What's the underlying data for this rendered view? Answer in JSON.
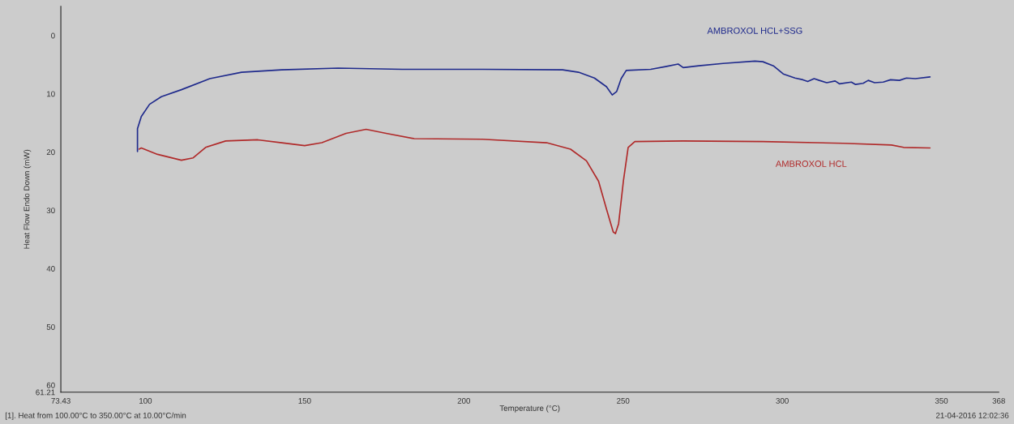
{
  "chart_data": {
    "type": "line",
    "xlabel": "Temperature (°C)",
    "ylabel": "Heat Flow Endo Down (mW)",
    "xlim": [
      73.43,
      368
    ],
    "xticks": [
      73.43,
      100,
      150,
      200,
      250,
      300,
      350,
      368
    ],
    "ylim": [
      61.21,
      -5
    ],
    "yticks": [
      0,
      10,
      20,
      30,
      40,
      50,
      60,
      61.21
    ],
    "marker": "none",
    "line_style": "solid",
    "series": [
      {
        "name": "AMBROXOL HCL+SSG",
        "color": "#1f2a8c",
        "x": [
          97.5,
          97.5,
          98.7,
          101.3,
          105,
          111.3,
          120.2,
          130.2,
          142.8,
          160.5,
          180.6,
          205.8,
          231,
          236,
          241,
          244.8,
          246.6,
          248,
          249.4,
          251,
          258.7,
          263.7,
          267.3,
          268.9,
          273.8,
          281.4,
          291.4,
          293.9,
          297.2,
          300.3,
          304,
          306.5,
          308,
          310,
          311.6,
          314,
          316.6,
          318,
          321.7,
          323,
          325.4,
          327,
          329,
          331.7,
          334,
          336.8,
          339,
          341.8,
          346.4
        ],
        "values": [
          19.9,
          16.0,
          13.9,
          11.8,
          10.5,
          9.3,
          7.4,
          6.3,
          5.9,
          5.6,
          5.8,
          5.8,
          5.9,
          6.3,
          7.3,
          8.8,
          10.2,
          9.6,
          7.4,
          6.0,
          5.8,
          5.3,
          4.9,
          5.5,
          5.2,
          4.8,
          4.4,
          4.5,
          5.2,
          6.6,
          7.3,
          7.6,
          7.9,
          7.4,
          7.7,
          8.1,
          7.8,
          8.3,
          8.0,
          8.4,
          8.2,
          7.7,
          8.1,
          8.0,
          7.6,
          7.7,
          7.3,
          7.4,
          7.1
        ]
      },
      {
        "name": "AMBROXOL HCL",
        "color": "#b02a2a",
        "x": [
          98,
          98.7,
          103.8,
          111.3,
          115,
          118.9,
          125.2,
          135.3,
          142.8,
          150,
          155.4,
          163,
          169.3,
          175.6,
          184.4,
          205.8,
          226,
          233.5,
          238.5,
          242.3,
          244.8,
          246.9,
          247.6,
          248.6,
          250.1,
          251.6,
          253.7,
          268.8,
          293.9,
          319.2,
          334.3,
          338.1,
          346.4
        ],
        "values": [
          19.5,
          19.3,
          20.4,
          21.4,
          21.0,
          19.2,
          18.1,
          17.9,
          18.4,
          18.9,
          18.4,
          16.8,
          16.1,
          16.8,
          17.7,
          17.8,
          18.4,
          19.5,
          21.5,
          25.0,
          29.8,
          33.7,
          34.0,
          32.3,
          25.0,
          19.2,
          18.2,
          18.1,
          18.2,
          18.5,
          18.8,
          19.2,
          19.3
        ]
      }
    ],
    "annotations": [
      "[1]. Heat from 100.00°C to 350.00°C at 10.00°C/min",
      "21-04-2016 12:02:36"
    ]
  }
}
